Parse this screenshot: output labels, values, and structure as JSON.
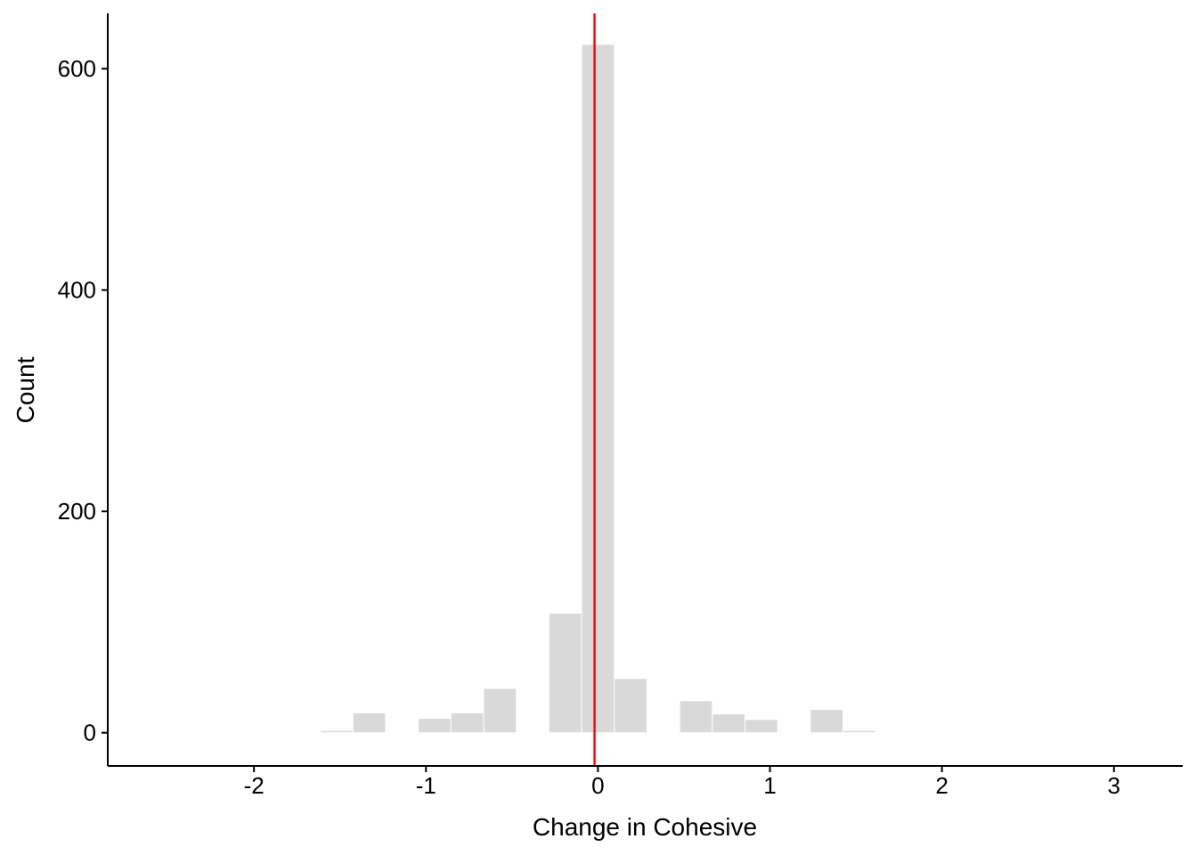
{
  "chart_data": {
    "type": "bar",
    "subtype": "histogram",
    "xlabel": "Change in Cohesive",
    "ylabel": "Count",
    "xlim": [
      -2.85,
      3.4
    ],
    "ylim": [
      -30,
      650
    ],
    "x_ticks": [
      -2,
      -1,
      0,
      1,
      2,
      3
    ],
    "x_tick_labels": [
      "-2",
      "-1",
      "0",
      "1",
      "2",
      "3"
    ],
    "y_ticks": [
      0,
      200,
      400,
      600
    ],
    "y_tick_labels": [
      "0",
      "200",
      "400",
      "600"
    ],
    "bin_width": 0.19,
    "bins": [
      {
        "x": -1.52,
        "count": 2
      },
      {
        "x": -1.33,
        "count": 18
      },
      {
        "x": -0.95,
        "count": 13
      },
      {
        "x": -0.76,
        "count": 18
      },
      {
        "x": -0.57,
        "count": 40
      },
      {
        "x": -0.19,
        "count": 108
      },
      {
        "x": 0.0,
        "count": 622
      },
      {
        "x": 0.19,
        "count": 49
      },
      {
        "x": 0.57,
        "count": 29
      },
      {
        "x": 0.76,
        "count": 17
      },
      {
        "x": 0.95,
        "count": 12
      },
      {
        "x": 1.33,
        "count": 21
      },
      {
        "x": 1.52,
        "count": 2
      }
    ],
    "reference_line": {
      "x": -0.02,
      "color": "#ff0000"
    },
    "bar_color": "#d9d9d9",
    "grid": false,
    "legend": "none"
  }
}
